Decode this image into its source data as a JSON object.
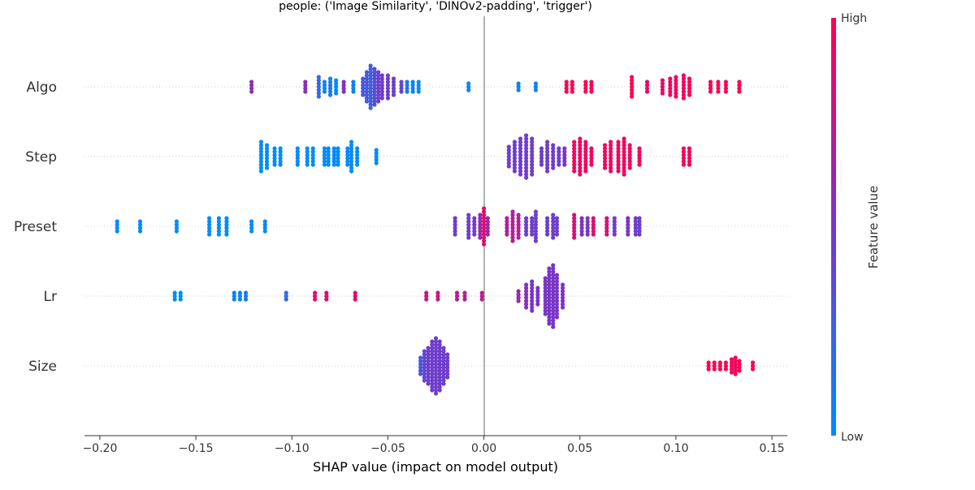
{
  "chart_data": {
    "type": "scatter",
    "title": "people: ('Image Similarity', 'DINOv2-padding', 'trigger')",
    "xlabel": "SHAP value (impact on model output)",
    "ylabel": "",
    "xlim": [
      -0.208,
      0.158
    ],
    "xticks": [
      -0.2,
      -0.15,
      -0.1,
      -0.05,
      0.0,
      0.05,
      0.1,
      0.15
    ],
    "xtick_labels": [
      "−0.20",
      "−0.15",
      "−0.10",
      "−0.05",
      "0.00",
      "0.05",
      "0.10",
      "0.15"
    ],
    "features": [
      "Algo",
      "Step",
      "Preset",
      "Lr",
      "Size"
    ],
    "zero_line": true,
    "colorbar": {
      "title": "Feature value",
      "high_label": "High",
      "low_label": "Low",
      "low_color": "#008bfb",
      "high_color": "#ff0052"
    },
    "series": [
      {
        "feature": "Algo",
        "groups": [
          {
            "x": -0.121,
            "n": 4,
            "v": 0.55
          },
          {
            "x": -0.093,
            "n": 4,
            "v": 0.55
          },
          {
            "x": -0.086,
            "n": 7,
            "v": 0.2
          },
          {
            "x": -0.083,
            "n": 4,
            "v": 0.05
          },
          {
            "x": -0.08,
            "n": 6,
            "v": 0.1
          },
          {
            "x": -0.077,
            "n": 5,
            "v": 0.0
          },
          {
            "x": -0.073,
            "n": 4,
            "v": 0.55
          },
          {
            "x": -0.068,
            "n": 4,
            "v": 0.05
          },
          {
            "x": -0.063,
            "n": 6,
            "v": 0.3
          },
          {
            "x": -0.061,
            "n": 10,
            "v": 0.3
          },
          {
            "x": -0.059,
            "n": 14,
            "v": 0.25
          },
          {
            "x": -0.057,
            "n": 12,
            "v": 0.35
          },
          {
            "x": -0.055,
            "n": 10,
            "v": 0.45
          },
          {
            "x": -0.053,
            "n": 8,
            "v": 0.45
          },
          {
            "x": -0.05,
            "n": 8,
            "v": 0.45
          },
          {
            "x": -0.047,
            "n": 6,
            "v": 0.45
          },
          {
            "x": -0.043,
            "n": 4,
            "v": 0.4
          },
          {
            "x": -0.04,
            "n": 4,
            "v": 0.1
          },
          {
            "x": -0.037,
            "n": 4,
            "v": 0.05
          },
          {
            "x": -0.034,
            "n": 4,
            "v": 0.0
          },
          {
            "x": -0.008,
            "n": 3,
            "v": 0.05
          },
          {
            "x": 0.018,
            "n": 3,
            "v": 0.05
          },
          {
            "x": 0.027,
            "n": 3,
            "v": 0.05
          },
          {
            "x": 0.043,
            "n": 4,
            "v": 1.0
          },
          {
            "x": 0.046,
            "n": 4,
            "v": 1.0
          },
          {
            "x": 0.053,
            "n": 4,
            "v": 1.0
          },
          {
            "x": 0.056,
            "n": 4,
            "v": 1.0
          },
          {
            "x": 0.077,
            "n": 7,
            "v": 1.0
          },
          {
            "x": 0.085,
            "n": 4,
            "v": 0.9
          },
          {
            "x": 0.093,
            "n": 5,
            "v": 0.9
          },
          {
            "x": 0.097,
            "n": 6,
            "v": 0.95
          },
          {
            "x": 0.1,
            "n": 7,
            "v": 0.95
          },
          {
            "x": 0.104,
            "n": 8,
            "v": 0.95
          },
          {
            "x": 0.107,
            "n": 6,
            "v": 1.0
          },
          {
            "x": 0.118,
            "n": 4,
            "v": 1.0
          },
          {
            "x": 0.122,
            "n": 4,
            "v": 1.0
          },
          {
            "x": 0.126,
            "n": 4,
            "v": 1.0
          },
          {
            "x": 0.133,
            "n": 4,
            "v": 1.0
          }
        ]
      },
      {
        "feature": "Step",
        "groups": [
          {
            "x": -0.116,
            "n": 10,
            "v": 0.0
          },
          {
            "x": -0.113,
            "n": 8,
            "v": 0.0
          },
          {
            "x": -0.109,
            "n": 6,
            "v": 0.0
          },
          {
            "x": -0.106,
            "n": 6,
            "v": 0.0
          },
          {
            "x": -0.097,
            "n": 6,
            "v": 0.0
          },
          {
            "x": -0.092,
            "n": 6,
            "v": 0.0
          },
          {
            "x": -0.089,
            "n": 6,
            "v": 0.0
          },
          {
            "x": -0.083,
            "n": 6,
            "v": 0.0
          },
          {
            "x": -0.081,
            "n": 6,
            "v": 0.0
          },
          {
            "x": -0.078,
            "n": 6,
            "v": 0.0
          },
          {
            "x": -0.076,
            "n": 6,
            "v": 0.0
          },
          {
            "x": -0.071,
            "n": 6,
            "v": 0.0
          },
          {
            "x": -0.069,
            "n": 10,
            "v": 0.0
          },
          {
            "x": -0.066,
            "n": 6,
            "v": 0.0
          },
          {
            "x": -0.056,
            "n": 5,
            "v": 0.0
          },
          {
            "x": 0.013,
            "n": 7,
            "v": 0.45
          },
          {
            "x": 0.016,
            "n": 10,
            "v": 0.45
          },
          {
            "x": 0.019,
            "n": 12,
            "v": 0.45
          },
          {
            "x": 0.022,
            "n": 14,
            "v": 0.45
          },
          {
            "x": 0.025,
            "n": 12,
            "v": 0.45
          },
          {
            "x": 0.03,
            "n": 6,
            "v": 0.45
          },
          {
            "x": 0.033,
            "n": 10,
            "v": 0.45
          },
          {
            "x": 0.036,
            "n": 8,
            "v": 0.45
          },
          {
            "x": 0.039,
            "n": 6,
            "v": 0.45
          },
          {
            "x": 0.042,
            "n": 6,
            "v": 0.5
          },
          {
            "x": 0.047,
            "n": 10,
            "v": 0.95
          },
          {
            "x": 0.05,
            "n": 12,
            "v": 0.95
          },
          {
            "x": 0.053,
            "n": 10,
            "v": 0.95
          },
          {
            "x": 0.056,
            "n": 6,
            "v": 0.95
          },
          {
            "x": 0.063,
            "n": 8,
            "v": 0.95
          },
          {
            "x": 0.066,
            "n": 10,
            "v": 0.95
          },
          {
            "x": 0.07,
            "n": 10,
            "v": 0.95
          },
          {
            "x": 0.073,
            "n": 12,
            "v": 0.95
          },
          {
            "x": 0.076,
            "n": 8,
            "v": 0.95
          },
          {
            "x": 0.081,
            "n": 6,
            "v": 0.95
          },
          {
            "x": 0.104,
            "n": 6,
            "v": 0.95
          },
          {
            "x": 0.107,
            "n": 6,
            "v": 0.95
          }
        ]
      },
      {
        "feature": "Preset",
        "groups": [
          {
            "x": -0.191,
            "n": 4,
            "v": 0.0
          },
          {
            "x": -0.179,
            "n": 4,
            "v": 0.0
          },
          {
            "x": -0.16,
            "n": 4,
            "v": 0.0
          },
          {
            "x": -0.143,
            "n": 6,
            "v": 0.0
          },
          {
            "x": -0.138,
            "n": 6,
            "v": 0.0
          },
          {
            "x": -0.134,
            "n": 6,
            "v": 0.0
          },
          {
            "x": -0.121,
            "n": 4,
            "v": 0.0
          },
          {
            "x": -0.114,
            "n": 4,
            "v": 0.0
          },
          {
            "x": -0.015,
            "n": 6,
            "v": 0.45
          },
          {
            "x": -0.008,
            "n": 8,
            "v": 0.45
          },
          {
            "x": -0.005,
            "n": 6,
            "v": 0.45
          },
          {
            "x": -0.002,
            "n": 8,
            "v": 0.6
          },
          {
            "x": 0.0,
            "n": 12,
            "v": 0.9
          },
          {
            "x": 0.002,
            "n": 6,
            "v": 0.6
          },
          {
            "x": 0.012,
            "n": 6,
            "v": 0.7
          },
          {
            "x": 0.015,
            "n": 10,
            "v": 0.7
          },
          {
            "x": 0.018,
            "n": 8,
            "v": 0.7
          },
          {
            "x": 0.022,
            "n": 6,
            "v": 0.45
          },
          {
            "x": 0.025,
            "n": 6,
            "v": 0.45
          },
          {
            "x": 0.027,
            "n": 10,
            "v": 0.45
          },
          {
            "x": 0.033,
            "n": 6,
            "v": 0.45
          },
          {
            "x": 0.036,
            "n": 8,
            "v": 0.45
          },
          {
            "x": 0.038,
            "n": 6,
            "v": 0.45
          },
          {
            "x": 0.047,
            "n": 8,
            "v": 0.85
          },
          {
            "x": 0.051,
            "n": 6,
            "v": 0.5
          },
          {
            "x": 0.054,
            "n": 6,
            "v": 0.5
          },
          {
            "x": 0.057,
            "n": 6,
            "v": 0.85
          },
          {
            "x": 0.064,
            "n": 6,
            "v": 0.85
          },
          {
            "x": 0.068,
            "n": 6,
            "v": 0.45
          },
          {
            "x": 0.075,
            "n": 6,
            "v": 0.5
          },
          {
            "x": 0.079,
            "n": 6,
            "v": 0.45
          },
          {
            "x": 0.081,
            "n": 6,
            "v": 0.45
          }
        ]
      },
      {
        "feature": "Lr",
        "groups": [
          {
            "x": -0.161,
            "n": 3,
            "v": 0.0
          },
          {
            "x": -0.158,
            "n": 3,
            "v": 0.0
          },
          {
            "x": -0.13,
            "n": 3,
            "v": 0.05
          },
          {
            "x": -0.127,
            "n": 3,
            "v": 0.05
          },
          {
            "x": -0.124,
            "n": 3,
            "v": 0.1
          },
          {
            "x": -0.103,
            "n": 3,
            "v": 0.2
          },
          {
            "x": -0.088,
            "n": 3,
            "v": 0.9
          },
          {
            "x": -0.082,
            "n": 3,
            "v": 0.9
          },
          {
            "x": -0.067,
            "n": 3,
            "v": 0.9
          },
          {
            "x": -0.03,
            "n": 3,
            "v": 0.8
          },
          {
            "x": -0.024,
            "n": 3,
            "v": 0.8
          },
          {
            "x": -0.014,
            "n": 3,
            "v": 0.7
          },
          {
            "x": -0.01,
            "n": 3,
            "v": 0.7
          },
          {
            "x": -0.001,
            "n": 3,
            "v": 0.75
          },
          {
            "x": 0.018,
            "n": 4,
            "v": 0.6
          },
          {
            "x": 0.022,
            "n": 8,
            "v": 0.55
          },
          {
            "x": 0.025,
            "n": 10,
            "v": 0.5
          },
          {
            "x": 0.028,
            "n": 6,
            "v": 0.5
          },
          {
            "x": 0.032,
            "n": 12,
            "v": 0.5
          },
          {
            "x": 0.034,
            "n": 18,
            "v": 0.5
          },
          {
            "x": 0.036,
            "n": 20,
            "v": 0.5
          },
          {
            "x": 0.038,
            "n": 14,
            "v": 0.5
          },
          {
            "x": 0.041,
            "n": 8,
            "v": 0.5
          }
        ]
      },
      {
        "feature": "Size",
        "groups": [
          {
            "x": -0.033,
            "n": 6,
            "v": 0.3
          },
          {
            "x": -0.031,
            "n": 10,
            "v": 0.4
          },
          {
            "x": -0.029,
            "n": 12,
            "v": 0.45
          },
          {
            "x": -0.027,
            "n": 16,
            "v": 0.45
          },
          {
            "x": -0.025,
            "n": 18,
            "v": 0.45
          },
          {
            "x": -0.023,
            "n": 16,
            "v": 0.45
          },
          {
            "x": -0.021,
            "n": 12,
            "v": 0.45
          },
          {
            "x": -0.019,
            "n": 8,
            "v": 0.45
          },
          {
            "x": 0.117,
            "n": 3,
            "v": 1.0
          },
          {
            "x": 0.12,
            "n": 3,
            "v": 1.0
          },
          {
            "x": 0.123,
            "n": 3,
            "v": 1.0
          },
          {
            "x": 0.126,
            "n": 3,
            "v": 1.0
          },
          {
            "x": 0.129,
            "n": 5,
            "v": 0.95
          },
          {
            "x": 0.131,
            "n": 6,
            "v": 0.95
          },
          {
            "x": 0.133,
            "n": 4,
            "v": 1.0
          },
          {
            "x": 0.14,
            "n": 3,
            "v": 1.0
          }
        ]
      }
    ]
  }
}
